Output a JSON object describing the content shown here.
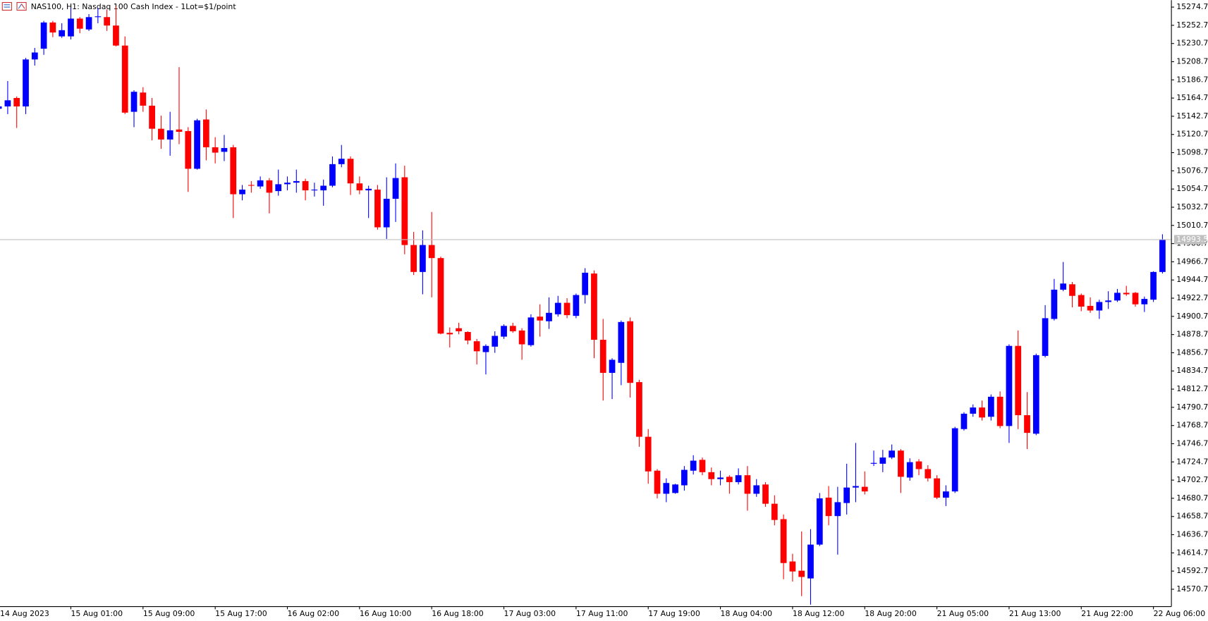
{
  "chart_data": {
    "type": "candlestick",
    "title": "NAS100, H1:  Nasdaq 100 Cash Index - 1Lot=$1/point",
    "up_color": "#0000ff",
    "down_color": "#ff0000",
    "grid": false,
    "last_price": 14993.5,
    "ylim": [
      14550.2,
      15283.1
    ],
    "yticks": [
      15274.7,
      15252.7,
      15230.7,
      15208.7,
      15186.7,
      15164.7,
      15142.7,
      15120.7,
      15098.7,
      15076.7,
      15054.7,
      15032.7,
      15010.7,
      14988.7,
      14966.7,
      14944.7,
      14922.7,
      14900.7,
      14878.7,
      14856.7,
      14834.7,
      14812.7,
      14790.7,
      14768.7,
      14746.7,
      14724.7,
      14702.7,
      14680.7,
      14658.7,
      14636.7,
      14614.7,
      14592.7,
      14570.7
    ],
    "categories": [
      "14 Aug 2023",
      null,
      null,
      null,
      null,
      null,
      null,
      null,
      "15 Aug 01:00",
      null,
      null,
      null,
      null,
      null,
      null,
      null,
      "15 Aug 09:00",
      null,
      null,
      null,
      null,
      null,
      null,
      null,
      "15 Aug 17:00",
      null,
      null,
      null,
      null,
      null,
      null,
      null,
      "16 Aug 02:00",
      null,
      null,
      null,
      null,
      null,
      null,
      null,
      "16 Aug 10:00",
      null,
      null,
      null,
      null,
      null,
      null,
      null,
      "16 Aug 18:00",
      null,
      null,
      null,
      null,
      null,
      null,
      null,
      "17 Aug 03:00",
      null,
      null,
      null,
      null,
      null,
      null,
      null,
      "17 Aug 11:00",
      null,
      null,
      null,
      null,
      null,
      null,
      null,
      "17 Aug 19:00",
      null,
      null,
      null,
      null,
      null,
      null,
      null,
      "18 Aug 04:00",
      null,
      null,
      null,
      null,
      null,
      null,
      null,
      "18 Aug 12:00",
      null,
      null,
      null,
      null,
      null,
      null,
      null,
      "18 Aug 20:00",
      null,
      null,
      null,
      null,
      null,
      null,
      null,
      "21 Aug 05:00",
      null,
      null,
      null,
      null,
      null,
      null,
      null,
      "21 Aug 13:00",
      null,
      null,
      null,
      null,
      null,
      null,
      null,
      "21 Aug 22:00",
      null,
      null,
      null,
      null,
      null,
      null,
      null,
      "22 Aug 06:00",
      null
    ],
    "open": [
      15151.8,
      15154.6,
      15164.8,
      15154.6,
      15211.4,
      15224.4,
      15256.1,
      15239.3,
      15239.3,
      15260.8,
      15247.7,
      15262.6,
      15262.6,
      15252.4,
      15228.2,
      15148.1,
      15171.4,
      15155.5,
      15127.6,
      15114.6,
      15126.7,
      15124.8,
      15079.2,
      15138.8,
      15105.2,
      15099.7,
      15105.2,
      15048.4,
      15059.6,
      15057.8,
      15065.2,
      15052.2,
      15060.5,
      15062.4,
      15064.3,
      15053.1,
      15053.1,
      15058.7,
      15084.8,
      15091.3,
      15061.5,
      15053.1,
      15054.0,
      15008.4,
      15042.9,
      15068.9,
      14987.0,
      14954.4,
      14987.0,
      14971.2,
      14880.8,
      14886.4,
      14881.8,
      14870.6,
      14857.5,
      14864.1,
      14876.2,
      14889.2,
      14883.6,
      14865.9,
      14900.4,
      14894.8,
      14903.2,
      14917.1,
      14901.3,
      14926.5,
      14952.5,
      14872.4,
      14832.4,
      14844.5,
      14894.8,
      14821.2,
      14755.1,
      14714.1,
      14686.2,
      14687.1,
      14696.4,
      14714.1,
      14727.2,
      14712.3,
      14703.9,
      14706.7,
      14700.2,
      14708.6,
      14686.2,
      14697.4,
      14674.1,
      14655.5,
      14604.3,
      14593.1,
      14583.8,
      14624.7,
      14681.5,
      14659.2,
      14675.0,
      14693.7,
      14694.6,
      14722.5,
      14722.5,
      14730.0,
      14738.4,
      14705.8,
      14725.3,
      14716.0,
      14704.8,
      14681.5,
      14689.0,
      14764.4,
      14783.0,
      14790.5,
      14779.3,
      14803.5,
      14768.1,
      14865.0,
      14781.2,
      14758.8,
      14852.9,
      14897.6,
      14933.0,
      14939.5,
      14926.5,
      14913.4,
      14907.8,
      14918.1,
      14919.9,
      14929.2,
      14929.2,
      14915.3,
      14920.9,
      14954.4
    ],
    "high": [
      15159.3,
      15185.3,
      15166.7,
      15213.3,
      15225.4,
      15258.0,
      15258.0,
      15255.2,
      15273.8,
      15262.6,
      15266.3,
      15273.8,
      15271.9,
      15275.6,
      15239.3,
      15174.2,
      15177.9,
      15164.8,
      15143.4,
      15148.1,
      15202.1,
      15129.5,
      15139.7,
      15150.9,
      15117.4,
      15120.1,
      15108.0,
      15059.6,
      15064.3,
      15069.9,
      15068.0,
      15078.2,
      15069.9,
      15078.2,
      15067.1,
      15062.4,
      15066.1,
      15094.1,
      15108.0,
      15094.1,
      15069.9,
      15058.7,
      15059.6,
      15068.9,
      15085.7,
      15082.9,
      15002.8,
      15004.7,
      15027.0,
      14973.0,
      14887.3,
      14892.9,
      14882.7,
      14873.4,
      14866.9,
      14882.7,
      14891.1,
      14892.9,
      14886.4,
      14903.2,
      14915.3,
      14923.7,
      14925.5,
      14922.7,
      14928.3,
      14959.0,
      14956.3,
      14897.6,
      14850.1,
      14895.7,
      14899.4,
      14824.0,
      14764.4,
      14716.0,
      14704.8,
      14698.3,
      14719.7,
      14732.8,
      14730.0,
      14717.9,
      14714.1,
      14708.6,
      14716.9,
      14719.7,
      14703.9,
      14700.2,
      14684.3,
      14661.1,
      14613.6,
      14640.6,
      14643.4,
      14687.1,
      14695.5,
      14694.6,
      14722.5,
      14747.7,
      14713.2,
      14738.4,
      14739.3,
      14745.8,
      14740.2,
      14729.0,
      14728.1,
      14720.7,
      14708.6,
      14696.4,
      14767.2,
      14784.9,
      14794.2,
      14798.9,
      14806.3,
      14810.0,
      14866.9,
      14883.6,
      14809.1,
      14855.7,
      14914.3,
      14946.0,
      14966.5,
      14942.3,
      14928.3,
      14923.7,
      14920.9,
      14931.1,
      14933.9,
      14937.6,
      14930.2,
      14924.6,
      14955.3,
      15000.0
    ],
    "low": [
      15148.1,
      15145.3,
      15128.5,
      15145.3,
      15204.0,
      15217.0,
      15238.4,
      15237.5,
      15235.6,
      15243.1,
      15245.9,
      15255.2,
      15245.9,
      15227.2,
      15145.3,
      15129.5,
      15148.1,
      15113.6,
      15103.4,
      15095.0,
      15109.0,
      15051.2,
      15078.2,
      15089.4,
      15085.7,
      15088.5,
      15019.6,
      15041.0,
      15050.3,
      15055.0,
      15025.2,
      15046.6,
      15053.1,
      15050.3,
      15041.0,
      15045.6,
      15034.5,
      15056.8,
      15081.0,
      15047.5,
      15048.4,
      15019.6,
      15005.6,
      14994.4,
      15014.9,
      14975.8,
      14950.7,
      14927.4,
      14923.7,
      14879.0,
      14863.1,
      14879.0,
      14866.9,
      14842.6,
      14830.5,
      14856.6,
      14873.4,
      14880.8,
      14848.2,
      14864.1,
      14876.2,
      14885.5,
      14900.4,
      14898.5,
      14898.5,
      14916.2,
      14850.1,
      14798.9,
      14800.7,
      14817.5,
      14802.6,
      14743.0,
      14698.3,
      14680.6,
      14676.0,
      14686.2,
      14689.9,
      14709.5,
      14708.6,
      14696.4,
      14696.4,
      14686.2,
      14697.4,
      14665.7,
      14682.5,
      14670.4,
      14648.0,
      14582.8,
      14580.0,
      14562.4,
      14552.1,
      14622.9,
      14648.0,
      14612.6,
      14661.1,
      14676.0,
      14685.3,
      14719.7,
      14712.3,
      14728.1,
      14687.1,
      14702.0,
      14708.6,
      14701.1,
      14679.7,
      14671.3,
      14687.1,
      14762.6,
      14779.3,
      14774.7,
      14774.7,
      14765.4,
      14747.7,
      14764.4,
      14740.2,
      14757.0,
      14851.0,
      14895.7,
      14931.1,
      14911.6,
      14906.9,
      14905.0,
      14897.6,
      14909.7,
      14918.1,
      14925.5,
      14912.5,
      14906.0,
      14918.1,
      14952.5
    ],
    "close": [
      15154.6,
      15162.0,
      15154.6,
      15211.4,
      15219.8,
      15256.1,
      15244.0,
      15246.8,
      15260.8,
      15248.6,
      15262.6,
      15263.5,
      15252.4,
      15228.2,
      15147.1,
      15172.3,
      15155.5,
      15127.6,
      15114.6,
      15125.7,
      15123.9,
      15079.2,
      15137.8,
      15105.2,
      15098.7,
      15104.3,
      15048.4,
      15054.0,
      15058.7,
      15065.2,
      15050.3,
      15060.5,
      15062.4,
      15064.3,
      15053.1,
      15054.0,
      15058.7,
      15084.8,
      15091.3,
      15061.5,
      15053.1,
      15055.0,
      15008.4,
      15042.9,
      15068.0,
      14987.0,
      14954.4,
      14987.0,
      14971.2,
      14879.9,
      14879.0,
      14882.7,
      14871.5,
      14858.5,
      14865.0,
      14877.1,
      14889.2,
      14882.7,
      14866.9,
      14899.4,
      14895.7,
      14905.0,
      14917.1,
      14902.2,
      14926.5,
      14953.5,
      14872.4,
      14832.4,
      14848.2,
      14893.9,
      14820.3,
      14755.1,
      14713.2,
      14686.2,
      14699.2,
      14697.4,
      14715.1,
      14726.2,
      14712.3,
      14703.9,
      14705.8,
      14700.2,
      14708.6,
      14686.2,
      14696.4,
      14674.1,
      14654.5,
      14602.4,
      14592.2,
      14585.6,
      14624.7,
      14680.6,
      14659.2,
      14676.0,
      14693.7,
      14695.5,
      14689.0,
      14723.5,
      14730.0,
      14738.4,
      14706.7,
      14724.4,
      14716.0,
      14704.8,
      14681.5,
      14689.0,
      14765.4,
      14783.0,
      14790.5,
      14778.4,
      14803.5,
      14768.1,
      14865.0,
      14781.2,
      14759.8,
      14853.8,
      14898.5,
      14933.0,
      14940.4,
      14925.5,
      14912.5,
      14907.8,
      14918.1,
      14919.9,
      14929.2,
      14927.4,
      14915.3,
      14921.8,
      14954.4,
      14993.5
    ]
  }
}
